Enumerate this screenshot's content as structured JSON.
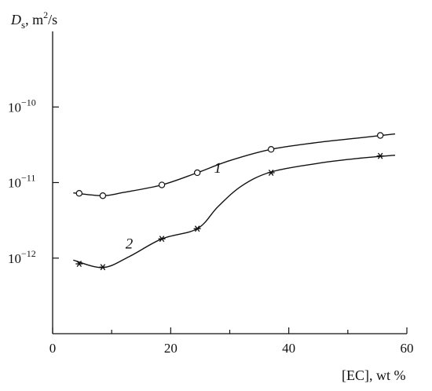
{
  "chart_data": {
    "type": "line",
    "ylabel_main": "D",
    "ylabel_sub": "s",
    "ylabel_unit": ", m",
    "ylabel_sup": "2",
    "ylabel_tail": "/s",
    "xlabel": "[EC], wt %",
    "xlim": [
      0,
      60
    ],
    "ylim": [
      1e-13,
      1e-09
    ],
    "yscale": "log",
    "grid": false,
    "x_ticks": [
      0,
      20,
      40,
      60
    ],
    "y_ticks": [
      {
        "base": "10",
        "exp": "−10",
        "value": 1e-10
      },
      {
        "base": "10",
        "exp": "−11",
        "value": 1e-11
      },
      {
        "base": "10",
        "exp": "−12",
        "value": 1e-12
      }
    ],
    "series": [
      {
        "name": "1",
        "marker": "circle",
        "x": [
          4.5,
          8.5,
          18.5,
          24.5,
          37,
          55.5
        ],
        "y": [
          7.2e-12,
          6.7e-12,
          9.3e-12,
          1.35e-11,
          2.75e-11,
          4.2e-11
        ],
        "curve_x": [
          3.5,
          8.5,
          12,
          18.5,
          24.5,
          30,
          37,
          45,
          52,
          58
        ],
        "curve_y": [
          7.3e-12,
          6.7e-12,
          7.4e-12,
          9.3e-12,
          1.35e-11,
          1.95e-11,
          2.75e-11,
          3.4e-11,
          3.9e-11,
          4.4e-11
        ]
      },
      {
        "name": "2",
        "marker": "asterisk",
        "x": [
          4.5,
          8.5,
          18.5,
          24.5,
          37,
          55.5
        ],
        "y": [
          8.4e-13,
          7.6e-13,
          1.8e-12,
          2.45e-12,
          1.35e-11,
          2.25e-11
        ],
        "curve_x": [
          3.5,
          8.5,
          13,
          18.5,
          24.5,
          28,
          32,
          37,
          45,
          52,
          58
        ],
        "curve_y": [
          9.4e-13,
          7.5e-13,
          1.05e-12,
          1.8e-12,
          2.45e-12,
          4.8e-12,
          9e-12,
          1.38e-11,
          1.8e-11,
          2.1e-11,
          2.3e-11
        ]
      }
    ]
  }
}
